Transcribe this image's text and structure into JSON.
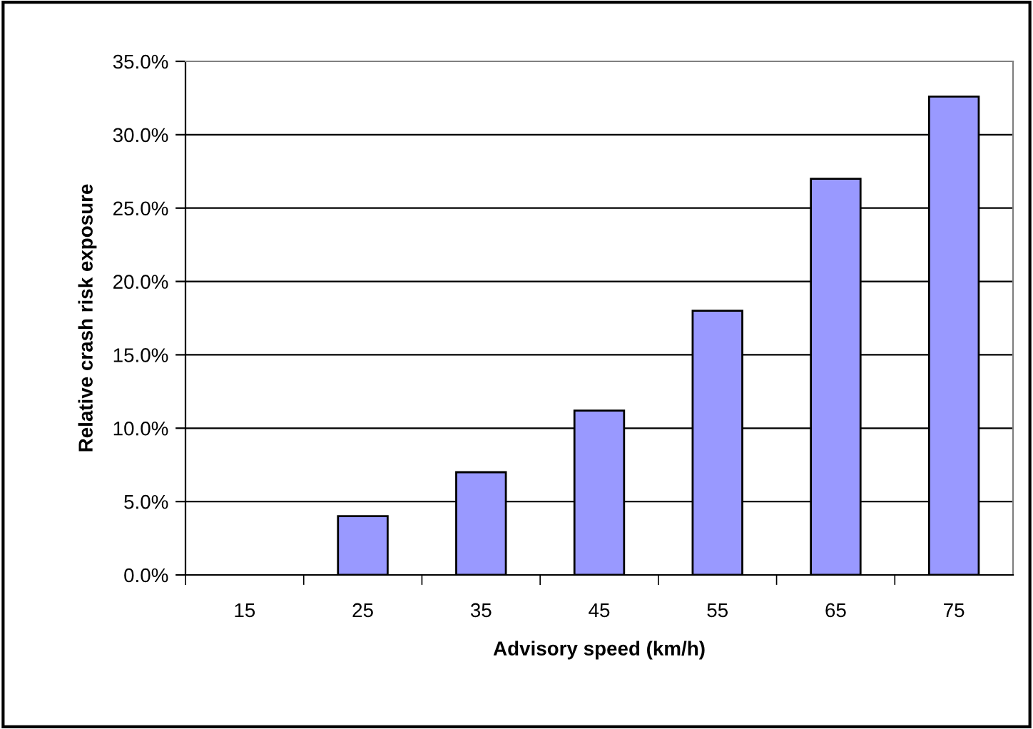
{
  "chart_data": {
    "type": "bar",
    "xlabel": "Advisory speed (km/h)",
    "ylabel": "Relative crash risk exposure",
    "categories": [
      "15",
      "25",
      "35",
      "45",
      "55",
      "65",
      "75"
    ],
    "values": [
      null,
      4.0,
      7.0,
      11.2,
      18.0,
      27.0,
      32.6
    ],
    "color": "#9999ff",
    "ylim": [
      0,
      35
    ],
    "yticks": [
      {
        "value": 0,
        "label": "0.0%"
      },
      {
        "value": 5,
        "label": "5.0%"
      },
      {
        "value": 10,
        "label": "10.0%"
      },
      {
        "value": 15,
        "label": "15.0%"
      },
      {
        "value": 20,
        "label": "20.0%"
      },
      {
        "value": 25,
        "label": "25.0%"
      },
      {
        "value": 30,
        "label": "30.0%"
      },
      {
        "value": 35,
        "label": "35.0%"
      }
    ],
    "grid": "y",
    "legend": false
  }
}
